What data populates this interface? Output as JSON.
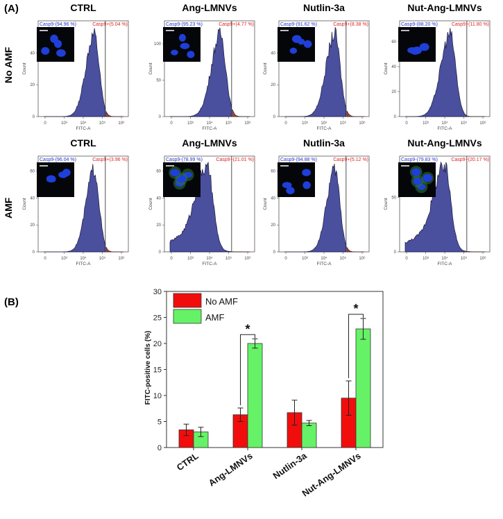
{
  "panel_a_label": "(A)",
  "panel_b_label": "(B)",
  "row_labels": [
    "No AMF",
    "AMF"
  ],
  "histograms": [
    {
      "row": 0,
      "title": "CTRL",
      "neg": "Casp9-(94.96 %)",
      "pos": "Casp9+(5.04 %)",
      "yticks": [
        "0",
        "20",
        "40"
      ],
      "ymax": 55,
      "peak": 0.78,
      "spread": 0.35,
      "green": false
    },
    {
      "row": 0,
      "title": "Ang-LMNVs",
      "neg": "Casp9-(95.23 %)",
      "pos": "Casp9+(4.77 %)",
      "yticks": [
        "0",
        "50",
        "100"
      ],
      "ymax": 120,
      "peak": 0.78,
      "spread": 0.45,
      "green": false
    },
    {
      "row": 0,
      "title": "Nutlin-3a",
      "neg": "Casp9-(91.62 %)",
      "pos": "Casp9+(8.38 %)",
      "yticks": [
        "0",
        "20",
        "40"
      ],
      "ymax": 55,
      "peak": 0.78,
      "spread": 0.42,
      "green": false
    },
    {
      "row": 0,
      "title": "Nut-Ang-LMNVs",
      "neg": "Casp9-(88.20 %)",
      "pos": "Casp9+(11.80 %)",
      "yticks": [
        "0",
        "20",
        "40",
        "60"
      ],
      "ymax": 70,
      "peak": 0.74,
      "spread": 0.5,
      "green": false
    },
    {
      "row": 1,
      "title": "CTRL",
      "neg": "Casp9-(96.04 %)",
      "pos": "Casp9+(3.96 %)",
      "yticks": [
        "0",
        "20",
        "40",
        "60"
      ],
      "ymax": 65,
      "peak": 0.78,
      "spread": 0.32,
      "green": false
    },
    {
      "row": 1,
      "title": "Ang-LMNVs",
      "neg": "Casp9-(78.99 %)",
      "pos": "Casp9+(21.01 %)",
      "yticks": [
        "0",
        "20",
        "40",
        "60"
      ],
      "ymax": 65,
      "peak": 0.68,
      "spread": 0.7,
      "green": true
    },
    {
      "row": 1,
      "title": "Nutlin-3a",
      "neg": "Casp9-(94.88 %)",
      "pos": "Casp9+(5.12 %)",
      "yticks": [
        "0",
        "20",
        "40",
        "60"
      ],
      "ymax": 65,
      "peak": 0.78,
      "spread": 0.33,
      "green": false
    },
    {
      "row": 1,
      "title": "Nut-Ang-LMNVs",
      "neg": "Casp9-(79.83 %)",
      "pos": "Casp9+(20.17 %)",
      "yticks": [
        "0",
        "50"
      ],
      "ymax": 80,
      "peak": 0.7,
      "spread": 0.68,
      "green": true
    }
  ],
  "hist_axes": {
    "xlabel": "FITC-A",
    "ylabel": "Count",
    "xticks": [
      "0",
      "10³",
      "10⁴",
      "10⁵",
      "10⁶"
    ]
  },
  "chart_data": {
    "type": "bar",
    "categories": [
      "CTRL",
      "Ang-LMNVs",
      "Nutlin-3a",
      "Nut-Ang-LMNVs"
    ],
    "series": [
      {
        "name": "No AMF",
        "color": "#f20d0d",
        "values": [
          3.4,
          6.3,
          6.7,
          9.5
        ],
        "errors": [
          1.1,
          1.3,
          2.4,
          3.3
        ]
      },
      {
        "name": "AMF",
        "color": "#66f266",
        "values": [
          3.0,
          20.0,
          4.7,
          22.8
        ],
        "errors": [
          0.9,
          0.9,
          0.5,
          2.0
        ]
      }
    ],
    "ylabel": "FITC-positive cells (%)",
    "ylim": [
      0,
      30
    ],
    "yticks": [
      "0",
      "5",
      "10",
      "15",
      "20",
      "25",
      "30"
    ],
    "significance": [
      {
        "category": "Ang-LMNVs",
        "label": "*"
      },
      {
        "category": "Nut-Ang-LMNVs",
        "label": "*"
      }
    ]
  }
}
